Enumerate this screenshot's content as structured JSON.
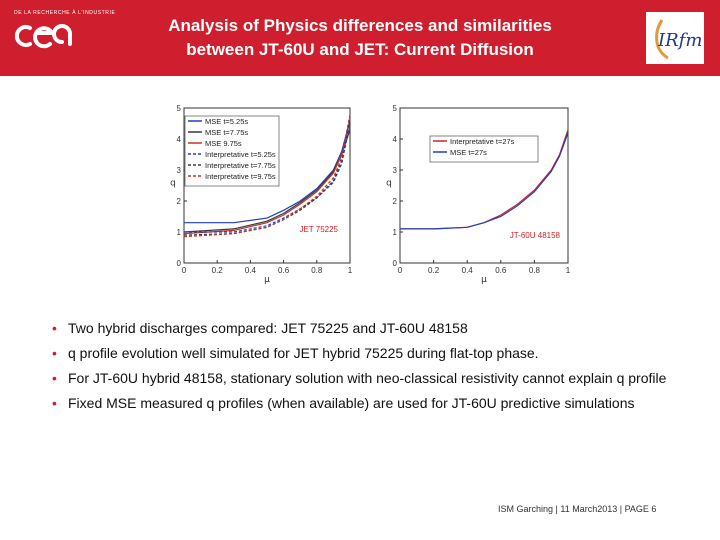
{
  "header": {
    "title_line1": "Analysis of Physics differences and similarities",
    "title_line2": "between JT-60U and JET: Current Diffusion",
    "bg_color": "#cf1f2e",
    "cea_tagline": "DE LA RECHERCHE À L'INDUSTRIE",
    "cea_logo": "cea",
    "irfm_logo": "IRFM"
  },
  "chart_data": [
    {
      "type": "line",
      "xlabel": "μ",
      "ylabel": "q",
      "xlim": [
        0,
        1
      ],
      "ylim": [
        0,
        5
      ],
      "xticks": [
        "0",
        "0.2",
        "0.4",
        "0.6",
        "0.8",
        "1"
      ],
      "yticks": [
        "0",
        "1",
        "2",
        "3",
        "4",
        "5"
      ],
      "annotation": "JET 75225",
      "legend_position": "top-left",
      "series": [
        {
          "name": "MSE t=5.25s",
          "color": "#1f3fbf",
          "style": "solid",
          "x": [
            0,
            0.3,
            0.5,
            0.6,
            0.7,
            0.8,
            0.9,
            0.95,
            1.0
          ],
          "y": [
            1.3,
            1.3,
            1.45,
            1.7,
            2.0,
            2.4,
            3.0,
            3.6,
            4.6
          ]
        },
        {
          "name": "MSE t=7.75s",
          "color": "#3a3a3a",
          "style": "solid",
          "x": [
            0,
            0.3,
            0.5,
            0.6,
            0.7,
            0.8,
            0.9,
            0.95,
            1.0
          ],
          "y": [
            1.0,
            1.1,
            1.35,
            1.6,
            1.95,
            2.35,
            2.95,
            3.5,
            4.3
          ]
        },
        {
          "name": "MSE 9.75s",
          "color": "#c8321e",
          "style": "solid",
          "x": [
            0,
            0.3,
            0.5,
            0.6,
            0.7,
            0.8,
            0.9,
            0.95,
            1.0
          ],
          "y": [
            0.95,
            1.05,
            1.3,
            1.55,
            1.9,
            2.3,
            2.9,
            3.5,
            4.4
          ]
        },
        {
          "name": "Interpretative t=5.25s",
          "color": "#1f3fbf",
          "style": "dashed",
          "x": [
            0,
            0.3,
            0.5,
            0.6,
            0.7,
            0.8,
            0.9,
            0.95,
            1.0
          ],
          "y": [
            1.0,
            1.0,
            1.2,
            1.45,
            1.75,
            2.1,
            2.6,
            3.2,
            4.5
          ]
        },
        {
          "name": "Interpretative t=7.75s",
          "color": "#3a3a3a",
          "style": "dashed",
          "x": [
            0,
            0.3,
            0.5,
            0.6,
            0.7,
            0.8,
            0.9,
            0.95,
            1.0
          ],
          "y": [
            0.9,
            0.95,
            1.15,
            1.4,
            1.7,
            2.1,
            2.65,
            3.3,
            4.7
          ]
        },
        {
          "name": "Interpretative t=9.75s",
          "color": "#c8321e",
          "style": "dashed",
          "x": [
            0,
            0.3,
            0.5,
            0.6,
            0.7,
            0.8,
            0.9,
            0.95,
            1.0
          ],
          "y": [
            0.85,
            0.95,
            1.15,
            1.4,
            1.75,
            2.15,
            2.75,
            3.4,
            4.8
          ]
        }
      ]
    },
    {
      "type": "line",
      "xlabel": "μ",
      "ylabel": "q",
      "xlim": [
        0,
        1
      ],
      "ylim": [
        0,
        5
      ],
      "xticks": [
        "0",
        "0.2",
        "0.4",
        "0.6",
        "0.8",
        "1"
      ],
      "yticks": [
        "0",
        "1",
        "2",
        "3",
        "4",
        "5"
      ],
      "annotation": "JT-60U 48158",
      "legend_position": "top-right",
      "series": [
        {
          "name": "Interpretative t=27s",
          "color": "#d42020",
          "style": "solid",
          "x": [
            0,
            0.2,
            0.4,
            0.5,
            0.6,
            0.7,
            0.8,
            0.9,
            0.95,
            1.0
          ],
          "y": [
            1.1,
            1.1,
            1.15,
            1.3,
            1.55,
            1.9,
            2.35,
            3.0,
            3.5,
            4.3
          ]
        },
        {
          "name": "MSE t=27s",
          "color": "#1f3fbf",
          "style": "solid",
          "x": [
            0,
            0.2,
            0.4,
            0.5,
            0.6,
            0.7,
            0.8,
            0.9,
            0.95,
            1.0
          ],
          "y": [
            1.1,
            1.1,
            1.15,
            1.3,
            1.5,
            1.85,
            2.3,
            2.95,
            3.45,
            4.2
          ]
        }
      ]
    }
  ],
  "bullets": [
    "Two hybrid discharges compared: JET 75225 and JT-60U 48158",
    "q profile evolution well simulated for JET hybrid 75225 during flat-top phase.",
    "For JT-60U hybrid 48158, stationary solution with neo-classical resistivity cannot explain q profile",
    "Fixed MSE measured q profiles (when available) are used for JT-60U predictive simulations"
  ],
  "bullet_marker": "•",
  "footer": {
    "text": "ISM Garching | 11 March2013 |",
    "page": "PAGE 6"
  }
}
